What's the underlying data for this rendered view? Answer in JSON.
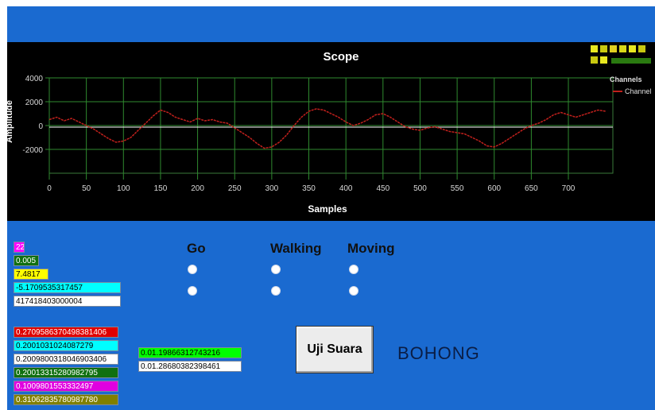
{
  "scope": {
    "title": "Scope",
    "xlabel": "Samples",
    "ylabel": "Amplitude",
    "legend_title": "Channels",
    "legend_item": "Channel",
    "toolbar_icons": [
      "cursor-icon",
      "pan-icon",
      "marker-icon",
      "print-icon",
      "save-icon",
      "zoom-in-icon",
      "zoom-out-icon"
    ]
  },
  "chart_data": {
    "type": "line",
    "title": "Scope",
    "xlabel": "Samples",
    "ylabel": "Amplitude",
    "xlim": [
      0,
      760
    ],
    "ylim": [
      -4000,
      4000
    ],
    "xticks": [
      "0",
      "50",
      "100",
      "150",
      "200",
      "250",
      "300",
      "350",
      "400",
      "450",
      "500",
      "550",
      "600",
      "650",
      "700"
    ],
    "yticks": [
      "4000",
      "2000",
      "0",
      "-2000"
    ],
    "grid": true,
    "legend_position": "right",
    "series": [
      {
        "name": "Channel",
        "color": "#c0201c",
        "x": [
          0,
          10,
          20,
          30,
          40,
          50,
          60,
          70,
          80,
          90,
          100,
          110,
          120,
          130,
          140,
          150,
          160,
          170,
          180,
          190,
          200,
          210,
          220,
          230,
          240,
          250,
          260,
          270,
          280,
          290,
          300,
          310,
          320,
          330,
          340,
          350,
          360,
          370,
          380,
          390,
          400,
          410,
          420,
          430,
          440,
          450,
          460,
          470,
          480,
          490,
          500,
          510,
          520,
          530,
          540,
          550,
          560,
          570,
          580,
          590,
          600,
          610,
          620,
          630,
          640,
          650,
          660,
          670,
          680,
          690,
          700,
          710,
          720,
          730,
          740,
          750
        ],
        "y": [
          500,
          700,
          400,
          600,
          300,
          0,
          -300,
          -700,
          -1100,
          -1400,
          -1300,
          -1000,
          -400,
          200,
          800,
          1300,
          1100,
          700,
          500,
          300,
          600,
          400,
          500,
          300,
          200,
          -200,
          -600,
          -1000,
          -1500,
          -1900,
          -1800,
          -1400,
          -800,
          0,
          700,
          1200,
          1400,
          1300,
          1000,
          700,
          300,
          0,
          200,
          500,
          900,
          1000,
          700,
          300,
          -100,
          -300,
          -400,
          -200,
          -100,
          -300,
          -500,
          -600,
          -700,
          -1000,
          -1300,
          -1700,
          -1800,
          -1500,
          -1100,
          -700,
          -300,
          0,
          200,
          500,
          900,
          1100,
          900,
          700,
          900,
          1100,
          1300,
          1200
        ]
      }
    ]
  },
  "radios": {
    "groups": [
      "Go",
      "Walking",
      "Moving"
    ]
  },
  "values": {
    "left_stack": [
      {
        "text": "22",
        "color": "#ff00ff",
        "fg": "#ffffff"
      },
      {
        "text": "0.005",
        "color": "#107010",
        "fg": "#ffffff"
      },
      {
        "text": "7.4817",
        "color": "#ffff00",
        "fg": "#000000"
      },
      {
        "text": "-5.1709535317457",
        "color": "#00ffff",
        "fg": "#000000"
      },
      {
        "text": "417418403000004",
        "color": "#ffffff",
        "fg": "#000000"
      }
    ],
    "lower_stack": [
      {
        "text": "0.2709586370498381406",
        "color": "#e00000",
        "fg": "#ffffff"
      },
      {
        "text": "0.2001031024087279",
        "color": "#00ffff",
        "fg": "#000000"
      },
      {
        "text": "0.2009800318046903406",
        "color": "#ffffff",
        "fg": "#000000"
      },
      {
        "text": "0.20013315280982795",
        "color": "#107010",
        "fg": "#ffffff"
      },
      {
        "text": "0.1009801553332497",
        "color": "#e000e0",
        "fg": "#ffffff"
      },
      {
        "text": "0.31062835780987780",
        "color": "#808000",
        "fg": "#ffffff"
      }
    ],
    "middle_stack": [
      {
        "text": "0.01.19866312743216",
        "color": "#00ff00",
        "fg": "#000000"
      },
      {
        "text": "0.01.28680382398461",
        "color": "#ffffff",
        "fg": "#000000"
      }
    ]
  },
  "action": {
    "button_label": "Uji Suara",
    "result": "BOHONG"
  }
}
